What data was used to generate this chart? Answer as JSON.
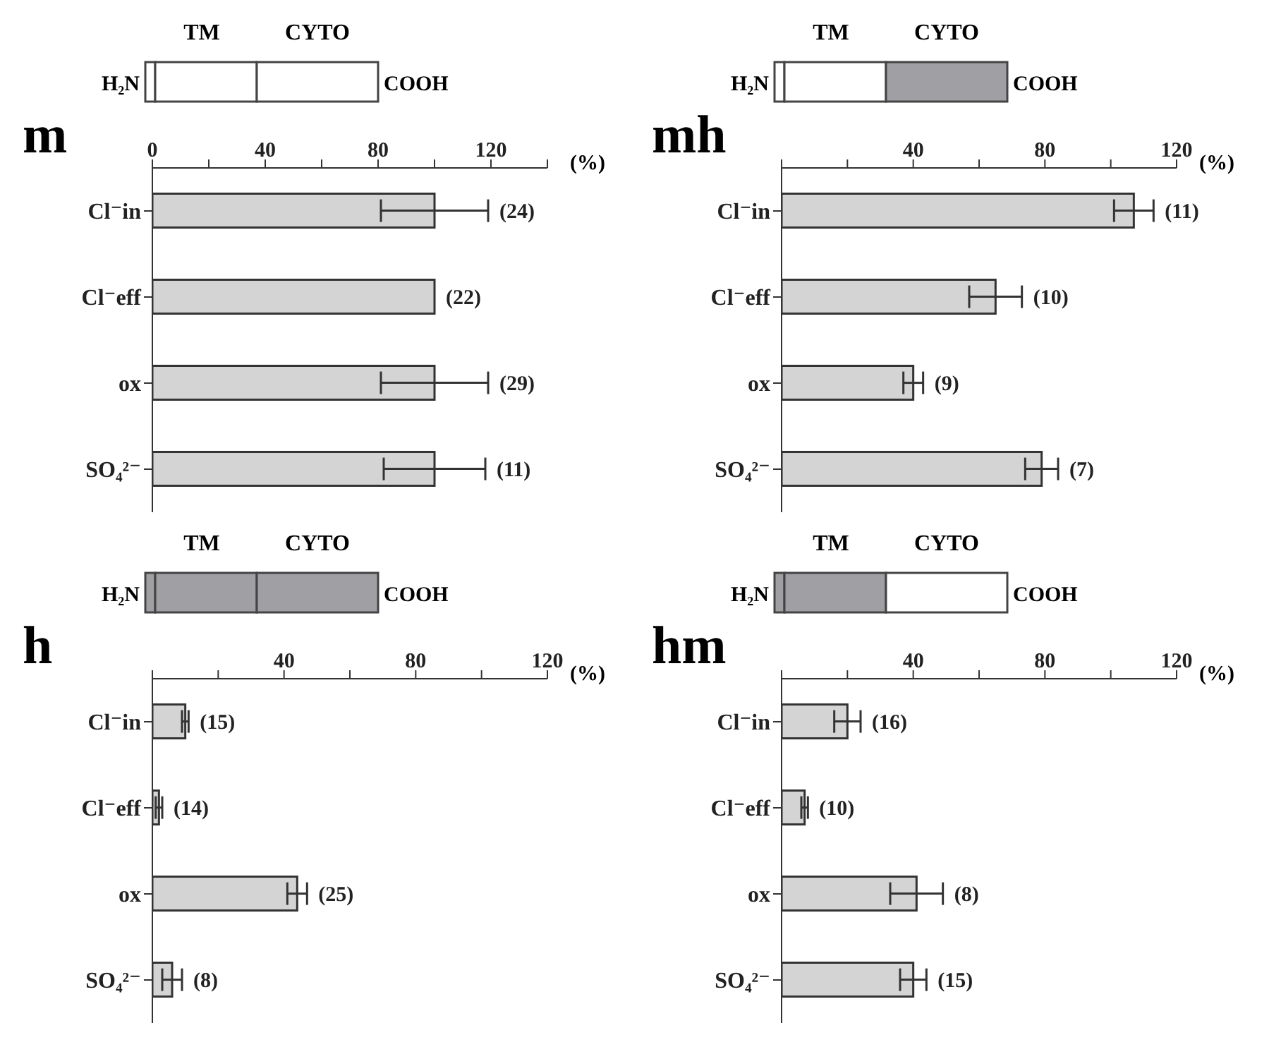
{
  "chart_data": [
    {
      "type": "bar",
      "title": "m",
      "orientation": "horizontal",
      "xlabel": "(%)",
      "categories": [
        "Cl⁻in",
        "Cl⁻eff",
        "ox",
        "SO₄²⁻"
      ],
      "values": [
        100,
        100,
        100,
        100
      ],
      "errors": [
        19,
        null,
        19,
        18
      ],
      "color": "#d4d4d4",
      "xlim": [
        0,
        140
      ],
      "xticks": [
        0,
        {
          "value": 20,
          "label": null
        },
        40,
        {
          "value": 60,
          "label": null
        },
        80,
        {
          "value": 100,
          "label": null
        },
        120,
        {
          "value": 140,
          "label": null
        }
      ],
      "annotations": [
        "TM",
        "CYTO",
        "H₂N",
        "COOH",
        {
          "text": "(24)",
          "x": 119,
          "y": "Cl⁻in"
        },
        {
          "text": "(22)",
          "x": 100,
          "y": "Cl⁻eff"
        },
        {
          "text": "(29)",
          "x": 119,
          "y": "ox"
        },
        {
          "text": "(11)",
          "x": 118,
          "y": "SO₄²⁻"
        }
      ]
    },
    {
      "type": "bar",
      "title": "mh",
      "orientation": "horizontal",
      "xlabel": "(%)",
      "categories": [
        "Cl⁻in",
        "Cl⁻eff",
        "ox",
        "SO₄²⁻"
      ],
      "values": [
        107,
        65,
        40,
        79
      ],
      "errors": [
        6,
        8,
        3,
        5
      ],
      "color": "#d4d4d4",
      "xlim": [
        0,
        120
      ],
      "xticks": [
        {
          "value": 0,
          "label": null
        },
        {
          "value": 20,
          "label": null
        },
        40,
        {
          "value": 60,
          "label": null
        },
        80,
        {
          "value": 100,
          "label": null
        },
        120
      ],
      "annotations": [
        "TM",
        "CYTO",
        "H₂N",
        "COOH",
        {
          "text": "(11)",
          "x": 113,
          "y": "Cl⁻in"
        },
        {
          "text": "(10)",
          "x": 73,
          "y": "Cl⁻eff"
        },
        {
          "text": "(9)",
          "x": 43,
          "y": "ox"
        },
        {
          "text": "(7)",
          "x": 84,
          "y": "SO₄²⁻"
        }
      ]
    },
    {
      "type": "bar",
      "title": "h",
      "orientation": "horizontal",
      "xlabel": "(%)",
      "categories": [
        "Cl⁻in",
        "Cl⁻eff",
        "ox",
        "SO₄²⁻"
      ],
      "values": [
        10,
        2,
        44,
        6
      ],
      "errors": [
        1,
        1,
        3,
        3
      ],
      "color": "#d4d4d4",
      "xlim": [
        0,
        120
      ],
      "xticks": [
        {
          "value": 0,
          "label": null
        },
        {
          "value": 20,
          "label": null
        },
        40,
        {
          "value": 60,
          "label": null
        },
        80,
        {
          "value": 100,
          "label": null
        },
        120
      ],
      "annotations": [
        "TM",
        "CYTO",
        "H₂N",
        "COOH",
        {
          "text": "(15)",
          "x": 11,
          "y": "Cl⁻in"
        },
        {
          "text": "(14)",
          "x": 3,
          "y": "Cl⁻eff"
        },
        {
          "text": "(25)",
          "x": 47,
          "y": "ox"
        },
        {
          "text": "(8)",
          "x": 9,
          "y": "SO₄²⁻"
        }
      ]
    },
    {
      "type": "bar",
      "title": "hm",
      "orientation": "horizontal",
      "xlabel": "(%)",
      "categories": [
        "Cl⁻in",
        "Cl⁻eff",
        "ox",
        "SO₄²⁻"
      ],
      "values": [
        20,
        7,
        41,
        40
      ],
      "errors": [
        4,
        1,
        8,
        4
      ],
      "color": "#d4d4d4",
      "xlim": [
        0,
        120
      ],
      "xticks": [
        {
          "value": 0,
          "label": null
        },
        {
          "value": 20,
          "label": null
        },
        40,
        {
          "value": 60,
          "label": null
        },
        80,
        {
          "value": 100,
          "label": null
        },
        120
      ],
      "annotations": [
        "TM",
        "CYTO",
        "H₂N",
        "COOH",
        {
          "text": "(16)",
          "x": 24,
          "y": "Cl⁻in"
        },
        {
          "text": "(10)",
          "x": 8,
          "y": "Cl⁻eff"
        },
        {
          "text": "(8)",
          "x": 49,
          "y": "ox"
        },
        {
          "text": "(15)",
          "x": 44,
          "y": "SO₄²⁻"
        }
      ]
    }
  ]
}
